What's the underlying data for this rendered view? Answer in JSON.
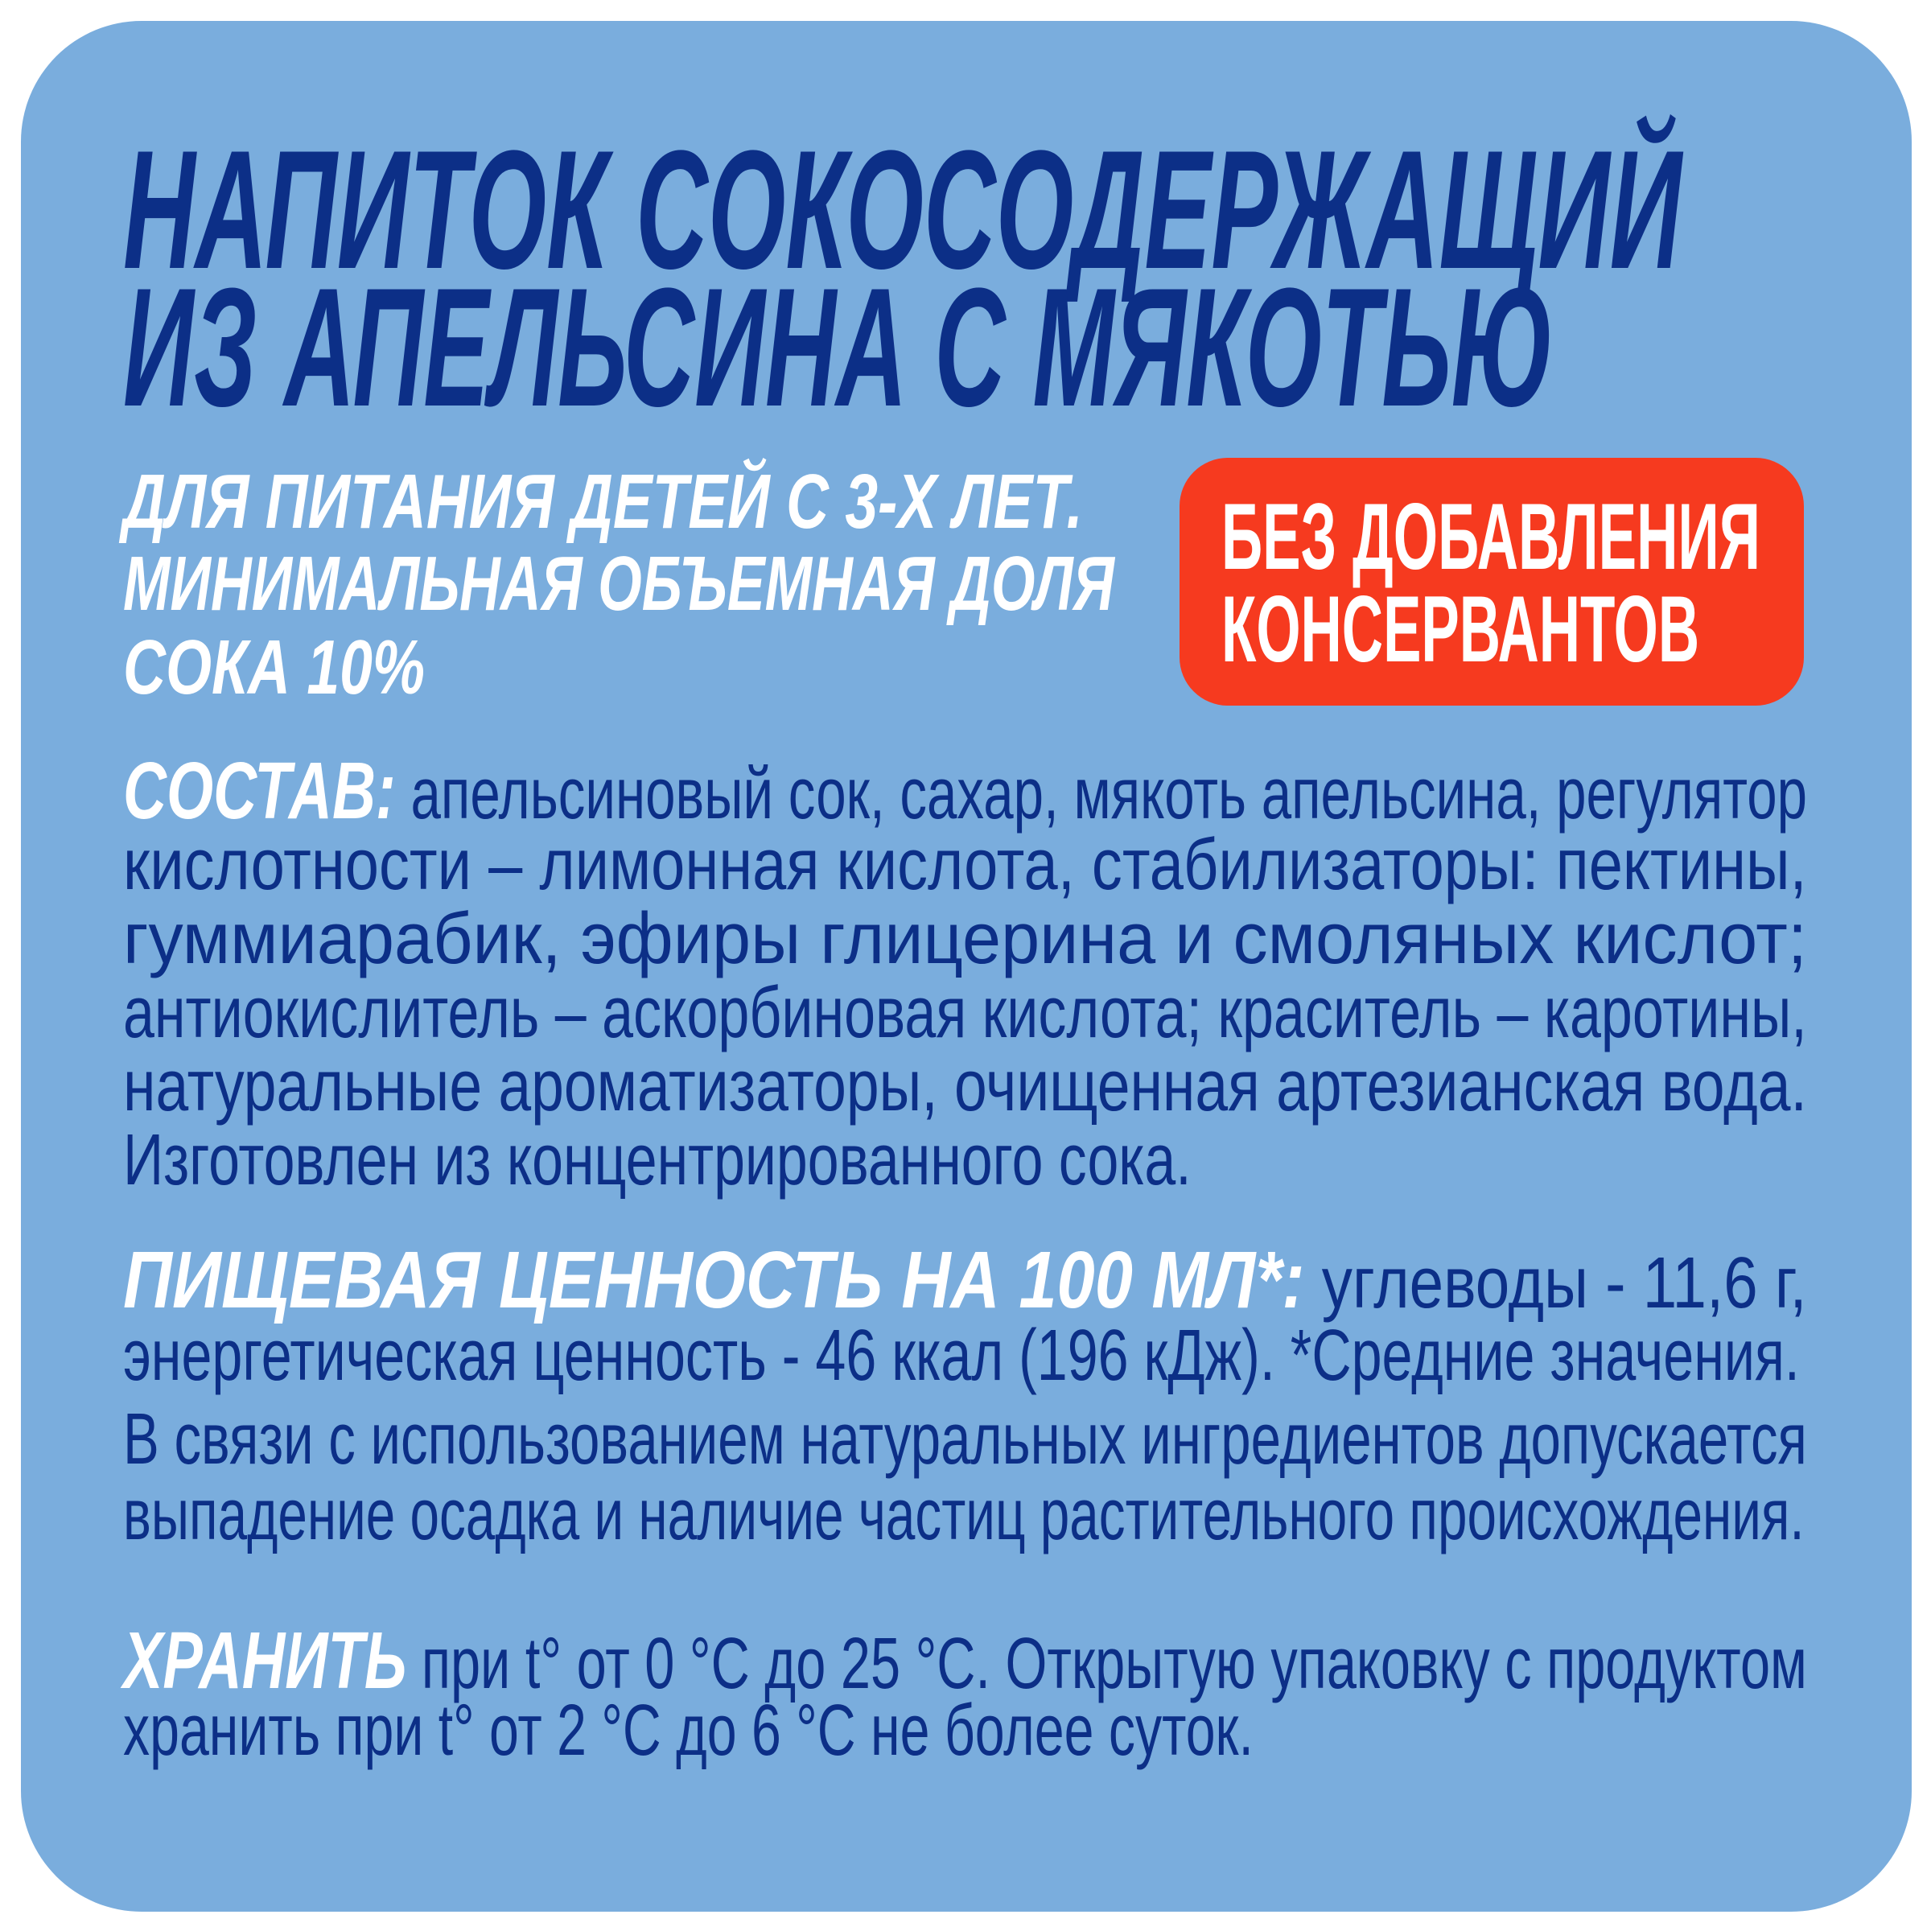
{
  "colors": {
    "background": "#7aaddd",
    "text_primary": "#0c2f87",
    "badge": "#f63a1f",
    "heading_accent": "#ffffff"
  },
  "title": {
    "lines": [
      "НАПИТОК СОКОСОДЕРЖАЩИЙ",
      "ИЗ АПЕЛЬСИНА С МЯКОТЬЮ"
    ]
  },
  "subtitle": {
    "lines": [
      "ДЛЯ ПИТАНИЯ ДЕТЕЙ С 3-Х ЛЕТ.",
      "МИНИМАЛЬНАЯ ОБЪЕМНАЯ ДОЛЯ",
      "СОКА 10%"
    ]
  },
  "badge": {
    "lines": [
      "БЕЗ ДОБАВЛЕНИЯ",
      "КОНСЕРВАНТОВ"
    ]
  },
  "composition": {
    "heading": "СОСТАВ:",
    "lines": [
      " апельсиновый сок, сахар, мякоть апельсина, регулятор",
      "кислотности – лимонная кислота, стабилизаторы: пектины,",
      "гуммиарабик, эфиры глицерина и смоляных кислот;",
      "антиокислитель – аскорбиновая кислота; краситель – каротины,",
      "натуральные ароматизаторы, очищенная артезианская вода.",
      "Изготовлен из концентрированного сока."
    ]
  },
  "nutrition": {
    "heading": "ПИЩЕВАЯ ЦЕННОСТЬ НА 100 МЛ*:",
    "lines": [
      " углеводы - 11,6 г,",
      "энергетическая ценность - 46 ккал (196 кДж). *Средние значения.",
      "В связи с использованием натуральных ингредиентов допускается",
      "выпадение осадка и наличие частиц растительного происхождения."
    ]
  },
  "storage": {
    "heading": "ХРАНИТЬ",
    "lines": [
      " при t° от 0 °C до 25 °C. Открытую упаковку с продуктом",
      "хранить при  t° от 2 °C до 6 °C не более суток."
    ]
  }
}
